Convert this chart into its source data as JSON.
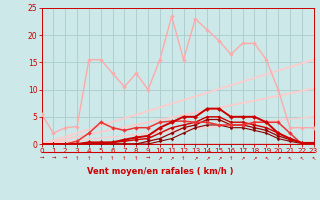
{
  "xlabel": "Vent moyen/en rafales ( km/h )",
  "background_color": "#cce8e8",
  "grid_color": "#aacccc",
  "text_color": "#cc0000",
  "xlim": [
    0,
    23
  ],
  "ylim": [
    0,
    25
  ],
  "yticks": [
    0,
    5,
    10,
    15,
    20,
    25
  ],
  "xticks": [
    0,
    1,
    2,
    3,
    4,
    5,
    6,
    7,
    8,
    9,
    10,
    11,
    12,
    13,
    14,
    15,
    16,
    17,
    18,
    19,
    20,
    21,
    22,
    23
  ],
  "series": [
    {
      "x": [
        0,
        1,
        2,
        3,
        4,
        5,
        6,
        7,
        8,
        9,
        10,
        11,
        12,
        13,
        14,
        15,
        16,
        17,
        18,
        19,
        20,
        21,
        22,
        23
      ],
      "y": [
        5.5,
        2.0,
        3.0,
        3.2,
        15.5,
        15.5,
        13.0,
        10.5,
        13.0,
        10.0,
        15.5,
        23.5,
        15.5,
        23.0,
        21.0,
        19.0,
        16.5,
        18.5,
        18.5,
        15.5,
        10.0,
        3.0,
        3.0,
        3.0
      ],
      "color": "#ffaaaa",
      "linewidth": 1.0,
      "marker": "D",
      "markersize": 2.0,
      "zorder": 3
    },
    {
      "x": [
        0,
        1,
        2,
        3,
        4,
        5,
        6,
        7,
        8,
        9,
        10,
        11,
        12,
        13,
        14,
        15,
        16,
        17,
        18,
        19,
        20,
        21,
        22,
        23
      ],
      "y": [
        0.0,
        0.0,
        0.0,
        0.0,
        0.3,
        0.3,
        0.3,
        0.8,
        1.2,
        1.5,
        3.0,
        4.0,
        5.0,
        5.0,
        6.5,
        6.5,
        5.0,
        5.0,
        5.0,
        4.0,
        2.0,
        1.0,
        0.2,
        0.2
      ],
      "color": "#cc0000",
      "linewidth": 1.4,
      "marker": "D",
      "markersize": 2.2,
      "zorder": 6
    },
    {
      "x": [
        0,
        1,
        2,
        3,
        4,
        5,
        6,
        7,
        8,
        9,
        10,
        11,
        12,
        13,
        14,
        15,
        16,
        17,
        18,
        19,
        20,
        21,
        22,
        23
      ],
      "y": [
        0.0,
        0.0,
        0.0,
        0.0,
        0.2,
        0.2,
        0.3,
        0.5,
        0.8,
        1.0,
        2.0,
        3.0,
        3.5,
        4.0,
        5.0,
        5.0,
        4.0,
        4.0,
        3.5,
        3.0,
        2.0,
        1.0,
        0.2,
        0.0
      ],
      "color": "#cc0000",
      "linewidth": 1.0,
      "marker": "D",
      "markersize": 1.8,
      "zorder": 5
    },
    {
      "x": [
        0,
        1,
        2,
        3,
        4,
        5,
        6,
        7,
        8,
        9,
        10,
        11,
        12,
        13,
        14,
        15,
        16,
        17,
        18,
        19,
        20,
        21,
        22,
        23
      ],
      "y": [
        0.0,
        0.0,
        0.0,
        0.0,
        0.0,
        0.0,
        0.0,
        0.0,
        0.0,
        0.5,
        1.0,
        2.0,
        3.0,
        3.5,
        4.5,
        4.5,
        3.5,
        3.5,
        3.0,
        2.5,
        1.5,
        0.8,
        0.2,
        0.0
      ],
      "color": "#990000",
      "linewidth": 0.9,
      "marker": "D",
      "markersize": 1.8,
      "zorder": 5
    },
    {
      "x": [
        0,
        1,
        2,
        3,
        4,
        5,
        6,
        7,
        8,
        9,
        10,
        11,
        12,
        13,
        14,
        15,
        16,
        17,
        18,
        19,
        20,
        21,
        22,
        23
      ],
      "y": [
        0.0,
        0.0,
        0.0,
        0.0,
        0.0,
        0.0,
        0.0,
        0.0,
        0.0,
        0.0,
        0.5,
        1.0,
        2.0,
        3.0,
        3.5,
        3.5,
        3.0,
        3.0,
        2.5,
        2.0,
        1.0,
        0.5,
        0.1,
        0.0
      ],
      "color": "#880000",
      "linewidth": 0.8,
      "marker": "D",
      "markersize": 1.5,
      "zorder": 4
    },
    {
      "x": [
        0,
        1,
        2,
        3,
        4,
        5,
        6,
        7,
        8,
        9,
        10,
        11,
        12,
        13,
        14,
        15,
        16,
        17,
        18,
        19,
        20,
        21,
        22,
        23
      ],
      "y": [
        0.0,
        0.0,
        0.0,
        0.5,
        2.0,
        4.0,
        3.0,
        2.5,
        3.0,
        3.0,
        4.0,
        4.2,
        4.2,
        4.0,
        4.0,
        3.5,
        3.5,
        3.5,
        4.0,
        4.0,
        4.0,
        2.0,
        0.0,
        0.0
      ],
      "color": "#ee3333",
      "linewidth": 1.1,
      "marker": "D",
      "markersize": 2.0,
      "zorder": 5
    },
    {
      "x": [
        0,
        23
      ],
      "y": [
        0,
        15.5
      ],
      "color": "#ffcccc",
      "linewidth": 1.3,
      "marker": null,
      "markersize": 0,
      "zorder": 2
    },
    {
      "x": [
        0,
        23
      ],
      "y": [
        0,
        10.2
      ],
      "color": "#ffcccc",
      "linewidth": 1.3,
      "marker": null,
      "markersize": 0,
      "zorder": 2
    },
    {
      "x": [
        0,
        23
      ],
      "y": [
        0,
        5.0
      ],
      "color": "#ffcccc",
      "linewidth": 1.0,
      "marker": null,
      "markersize": 0,
      "zorder": 2
    }
  ],
  "wind_arrows": [
    {
      "x": 0,
      "char": "→"
    },
    {
      "x": 1,
      "char": "→"
    },
    {
      "x": 2,
      "char": "→"
    },
    {
      "x": 3,
      "char": "↑"
    },
    {
      "x": 4,
      "char": "↑"
    },
    {
      "x": 5,
      "char": "↑"
    },
    {
      "x": 6,
      "char": "↑"
    },
    {
      "x": 7,
      "char": "↑"
    },
    {
      "x": 8,
      "char": "↑"
    },
    {
      "x": 9,
      "char": "→"
    },
    {
      "x": 10,
      "char": "↗"
    },
    {
      "x": 11,
      "char": "↗"
    },
    {
      "x": 12,
      "char": "↑"
    },
    {
      "x": 13,
      "char": "↗"
    },
    {
      "x": 14,
      "char": "↗"
    },
    {
      "x": 15,
      "char": "↗"
    },
    {
      "x": 16,
      "char": "↑"
    },
    {
      "x": 17,
      "char": "↗"
    },
    {
      "x": 18,
      "char": "↗"
    },
    {
      "x": 19,
      "char": "↖"
    },
    {
      "x": 20,
      "char": "↗"
    },
    {
      "x": 21,
      "char": "↖"
    },
    {
      "x": 22,
      "char": "↖"
    },
    {
      "x": 23,
      "char": "↖"
    }
  ]
}
